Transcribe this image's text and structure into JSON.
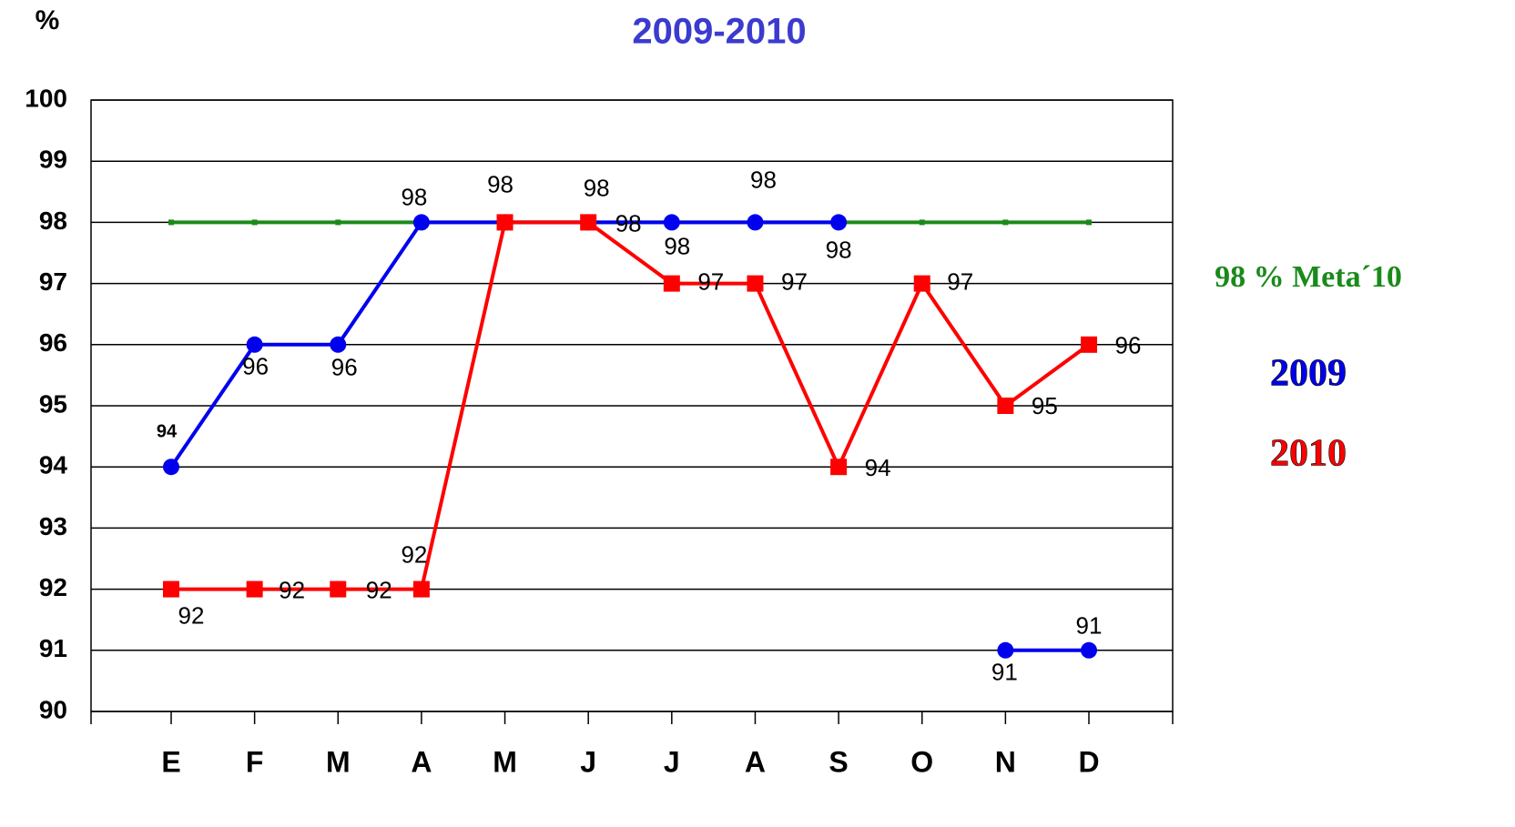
{
  "chart_data": {
    "type": "line",
    "title": "2009-2010",
    "y_label": "%",
    "categories": [
      "E",
      "F",
      "M",
      "A",
      "M",
      "J",
      "J",
      "A",
      "S",
      "O",
      "N",
      "D"
    ],
    "series": [
      {
        "name": "98 % Meta´10",
        "color": "#1a8a1a",
        "values": [
          98,
          98,
          98,
          98,
          98,
          98,
          98,
          98,
          98,
          98,
          98,
          98
        ]
      },
      {
        "name": "2009",
        "color": "#0000ee",
        "values": [
          94,
          96,
          96,
          98,
          98,
          98,
          98,
          98,
          98,
          null,
          91,
          91
        ]
      },
      {
        "name": "2010",
        "color": "#ff0000",
        "values": [
          92,
          92,
          92,
          92,
          98,
          98,
          97,
          97,
          94,
          97,
          95,
          96
        ]
      }
    ],
    "ylim": [
      90,
      100
    ],
    "yticks": [
      90,
      91,
      92,
      93,
      94,
      95,
      96,
      97,
      98,
      99,
      100
    ],
    "grid": true,
    "legend": "right"
  }
}
